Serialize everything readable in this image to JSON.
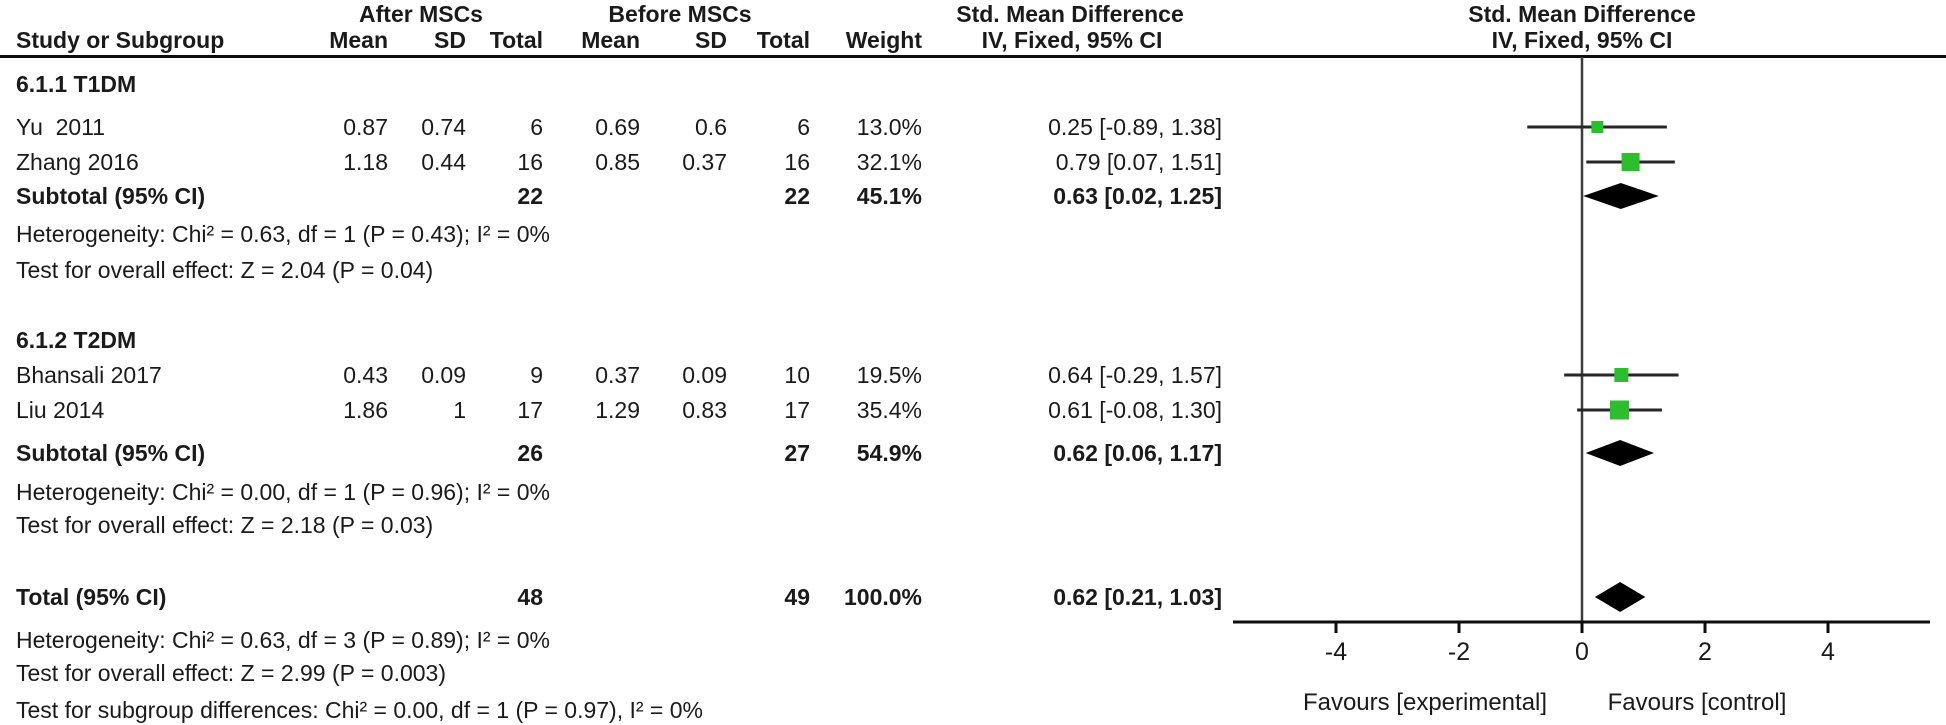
{
  "colors": {
    "marker_green": "#2CBE2C",
    "diamond_black": "#000000",
    "line_dark": "#262626",
    "zero_line": "#3c3c3c",
    "text": "#1a1a1a"
  },
  "headers": {
    "group1": "After MSCs",
    "group2": "Before MSCs",
    "effect_left_title": "Std. Mean Difference",
    "col_study": "Study or Subgroup",
    "col_mean1": "Mean",
    "col_sd1": "SD",
    "col_total1": "Total",
    "col_mean2": "Mean",
    "col_sd2": "SD",
    "col_total2": "Total",
    "col_weight": "Weight",
    "col_ci": "IV, Fixed, 95% CI",
    "plot_title": "Std. Mean Difference",
    "plot_subtitle": "IV, Fixed, 95% CI"
  },
  "table": {
    "sections": [
      {
        "title": "6.1.1 T1DM",
        "studies": [
          {
            "name": "Yu  2011",
            "mean1": "0.87",
            "sd1": "0.74",
            "total1": "6",
            "mean2": "0.69",
            "sd2": "0.6",
            "total2": "6",
            "weight": "13.0%",
            "ci": "0.25 [-0.89, 1.38]"
          },
          {
            "name": "Zhang 2016",
            "mean1": "1.18",
            "sd1": "0.44",
            "total1": "16",
            "mean2": "0.85",
            "sd2": "0.37",
            "total2": "16",
            "weight": "32.1%",
            "ci": "0.79 [0.07, 1.51]"
          }
        ],
        "subtotal": {
          "label": "Subtotal (95% CI)",
          "total1": "22",
          "total2": "22",
          "weight": "45.1%",
          "ci": "0.63 [0.02, 1.25]"
        },
        "heterogeneity": "Heterogeneity: Chi² = 0.63, df = 1 (P = 0.43); I² = 0%",
        "overall_effect": "Test for overall effect: Z = 2.04 (P = 0.04)"
      },
      {
        "title": "6.1.2 T2DM",
        "studies": [
          {
            "name": "Bhansali 2017",
            "mean1": "0.43",
            "sd1": "0.09",
            "total1": "9",
            "mean2": "0.37",
            "sd2": "0.09",
            "total2": "10",
            "weight": "19.5%",
            "ci": "0.64 [-0.29, 1.57]"
          },
          {
            "name": "Liu 2014",
            "mean1": "1.86",
            "sd1": "1",
            "total1": "17",
            "mean2": "1.29",
            "sd2": "0.83",
            "total2": "17",
            "weight": "35.4%",
            "ci": "0.61 [-0.08, 1.30]"
          }
        ],
        "subtotal": {
          "label": "Subtotal (95% CI)",
          "total1": "26",
          "total2": "27",
          "weight": "54.9%",
          "ci": "0.62 [0.06, 1.17]"
        },
        "heterogeneity": "Heterogeneity: Chi² = 0.00, df = 1 (P = 0.96); I² = 0%",
        "overall_effect": "Test for overall effect: Z = 2.18 (P = 0.03)"
      }
    ],
    "total": {
      "label": "Total (95% CI)",
      "total1": "48",
      "total2": "49",
      "weight": "100.0%",
      "ci": "0.62 [0.21, 1.03]"
    },
    "footer": [
      "Heterogeneity: Chi² = 0.63, df = 3 (P = 0.89); I² = 0%",
      "Test for overall effect: Z = 2.99 (P = 0.003)",
      "Test for subgroup differences: Chi² = 0.00, df = 1 (P = 0.97), I² = 0%"
    ]
  },
  "chart_data": {
    "type": "forest",
    "effect_measure": "Std. Mean Difference, IV, Fixed, 95% CI",
    "xlim": [
      -5.7,
      5.7
    ],
    "x_ticks": [
      -4,
      -2,
      0,
      2,
      4
    ],
    "favours_left": "Favours [experimental]",
    "favours_right": "Favours [control]",
    "subgroups": [
      {
        "name": "6.1.1 T1DM",
        "studies": [
          {
            "study": "Yu 2011",
            "after": {
              "mean": 0.87,
              "sd": 0.74,
              "total": 6
            },
            "before": {
              "mean": 0.69,
              "sd": 0.6,
              "total": 6
            },
            "weight_pct": 13.0,
            "smd": 0.25,
            "ci_low": -0.89,
            "ci_high": 1.38
          },
          {
            "study": "Zhang 2016",
            "after": {
              "mean": 1.18,
              "sd": 0.44,
              "total": 16
            },
            "before": {
              "mean": 0.85,
              "sd": 0.37,
              "total": 16
            },
            "weight_pct": 32.1,
            "smd": 0.79,
            "ci_low": 0.07,
            "ci_high": 1.51
          }
        ],
        "subtotal": {
          "total_after": 22,
          "total_before": 22,
          "weight_pct": 45.1,
          "smd": 0.63,
          "ci_low": 0.02,
          "ci_high": 1.25
        },
        "heterogeneity": "Chi² = 0.63, df = 1 (P = 0.43); I² = 0%",
        "overall_effect": "Z = 2.04 (P = 0.04)"
      },
      {
        "name": "6.1.2 T2DM",
        "studies": [
          {
            "study": "Bhansali 2017",
            "after": {
              "mean": 0.43,
              "sd": 0.09,
              "total": 9
            },
            "before": {
              "mean": 0.37,
              "sd": 0.09,
              "total": 10
            },
            "weight_pct": 19.5,
            "smd": 0.64,
            "ci_low": -0.29,
            "ci_high": 1.57
          },
          {
            "study": "Liu 2014",
            "after": {
              "mean": 1.86,
              "sd": 1,
              "total": 17
            },
            "before": {
              "mean": 1.29,
              "sd": 0.83,
              "total": 17
            },
            "weight_pct": 35.4,
            "smd": 0.61,
            "ci_low": -0.08,
            "ci_high": 1.3
          }
        ],
        "subtotal": {
          "total_after": 26,
          "total_before": 27,
          "weight_pct": 54.9,
          "smd": 0.62,
          "ci_low": 0.06,
          "ci_high": 1.17
        },
        "heterogeneity": "Chi² = 0.00, df = 1 (P = 0.96); I² = 0%",
        "overall_effect": "Z = 2.18 (P = 0.03)"
      }
    ],
    "total": {
      "total_after": 48,
      "total_before": 49,
      "weight_pct": 100.0,
      "smd": 0.62,
      "ci_low": 0.21,
      "ci_high": 1.03
    },
    "test_subgroup_differences": "Chi² = 0.00, df = 1 (P = 0.97), I² = 0%"
  }
}
